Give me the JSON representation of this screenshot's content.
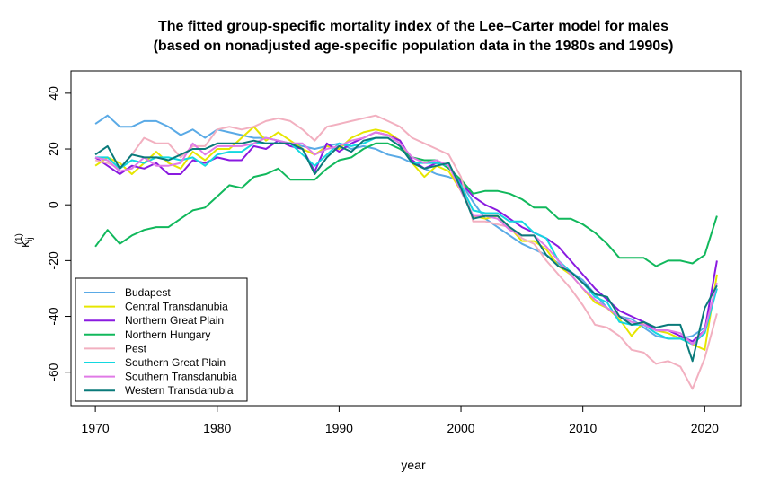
{
  "chart_data": {
    "type": "line",
    "title": "The fitted group-specific mortality index of the Lee–Carter model for males",
    "subtitle": "(based on nonadjusted age-specific population data in the 1980s and 1990s)",
    "xlabel": "year",
    "ylabel": "κij(1)",
    "ylabel_main": "κ",
    "ylabel_sup": "(1)",
    "ylabel_sub": "ij",
    "xlim": [
      1968,
      2023
    ],
    "ylim": [
      -72,
      48
    ],
    "xticks": [
      1970,
      1980,
      1990,
      2000,
      2010,
      2020
    ],
    "yticks": [
      -60,
      -40,
      -20,
      0,
      20,
      40
    ],
    "legend_position": "bottom-left",
    "x": [
      1970,
      1971,
      1972,
      1973,
      1974,
      1975,
      1976,
      1977,
      1978,
      1979,
      1980,
      1981,
      1982,
      1983,
      1984,
      1985,
      1986,
      1987,
      1988,
      1989,
      1990,
      1991,
      1992,
      1993,
      1994,
      1995,
      1996,
      1997,
      1998,
      1999,
      2000,
      2001,
      2002,
      2003,
      2004,
      2005,
      2006,
      2007,
      2008,
      2009,
      2010,
      2011,
      2012,
      2013,
      2014,
      2015,
      2016,
      2017,
      2018,
      2019,
      2020,
      2021
    ],
    "series": [
      {
        "name": "Budapest",
        "color": "#5aaae6",
        "values": [
          29,
          32,
          28,
          28,
          30,
          30,
          28,
          25,
          27,
          24,
          27,
          26,
          25,
          24,
          24,
          23,
          22,
          21,
          20,
          21,
          22,
          20,
          21,
          20,
          18,
          17,
          15,
          13,
          11,
          10,
          8,
          1,
          -5,
          -8,
          -11,
          -14,
          -16,
          -18,
          -21,
          -24,
          -27,
          -32,
          -37,
          -40,
          -41,
          -44,
          -47,
          -48,
          -48,
          -47,
          -44,
          -30
        ]
      },
      {
        "name": "Central Transdanubia",
        "color": "#e6e600",
        "values": [
          14,
          17,
          15,
          11,
          15,
          19,
          15,
          13,
          19,
          16,
          20,
          20,
          24,
          28,
          23,
          26,
          23,
          20,
          18,
          21,
          20,
          24,
          26,
          27,
          26,
          23,
          15,
          10,
          14,
          12,
          5,
          -4,
          -5,
          -4,
          -8,
          -13,
          -13,
          -16,
          -22,
          -25,
          -30,
          -35,
          -37,
          -41,
          -47,
          -42,
          -45,
          -46,
          -48,
          -50,
          -52,
          -25
        ]
      },
      {
        "name": "Northern Great Plain",
        "color": "#8a1ae0",
        "values": [
          17,
          14,
          11,
          14,
          13,
          15,
          11,
          11,
          16,
          15,
          17,
          16,
          16,
          21,
          20,
          23,
          21,
          20,
          12,
          22,
          19,
          22,
          24,
          26,
          25,
          23,
          16,
          13,
          15,
          14,
          8,
          3,
          0,
          -2,
          -5,
          -8,
          -10,
          -12,
          -15,
          -20,
          -25,
          -30,
          -34,
          -38,
          -40,
          -42,
          -45,
          -45,
          -47,
          -49,
          -45,
          -20
        ]
      },
      {
        "name": "Northern Hungary",
        "color": "#11b85c",
        "values": [
          -15,
          -9,
          -14,
          -11,
          -9,
          -8,
          -8,
          -5,
          -2,
          -1,
          3,
          7,
          6,
          10,
          11,
          13,
          9,
          9,
          9,
          13,
          16,
          17,
          20,
          22,
          22,
          20,
          17,
          16,
          16,
          13,
          9,
          4,
          5,
          5,
          4,
          2,
          -1,
          -1,
          -5,
          -5,
          -7,
          -10,
          -14,
          -19,
          -19,
          -19,
          -22,
          -20,
          -20,
          -21,
          -18,
          -4
        ]
      },
      {
        "name": "Pest",
        "color": "#f2b0c0",
        "values": [
          16,
          15,
          13,
          18,
          24,
          22,
          22,
          17,
          21,
          21,
          27,
          28,
          27,
          28,
          30,
          31,
          30,
          27,
          23,
          28,
          29,
          30,
          31,
          32,
          30,
          28,
          24,
          22,
          20,
          18,
          10,
          -6,
          -6,
          -7,
          -8,
          -12,
          -14,
          -20,
          -25,
          -30,
          -36,
          -43,
          -44,
          -47,
          -52,
          -53,
          -57,
          -56,
          -58,
          -66,
          -55,
          -39
        ]
      },
      {
        "name": "Southern Great Plain",
        "color": "#13d8e0",
        "values": [
          17,
          17,
          13,
          16,
          15,
          17,
          17,
          16,
          17,
          14,
          18,
          19,
          19,
          22,
          22,
          22,
          22,
          18,
          14,
          18,
          22,
          21,
          22,
          24,
          24,
          21,
          15,
          15,
          15,
          14,
          7,
          -2,
          -3,
          -3,
          -6,
          -6,
          -10,
          -12,
          -20,
          -24,
          -28,
          -33,
          -35,
          -42,
          -43,
          -43,
          -46,
          -48,
          -48,
          -50,
          -46,
          -30
        ]
      },
      {
        "name": "Southern Transdanubia",
        "color": "#e07ae6",
        "values": [
          17,
          16,
          12,
          13,
          17,
          14,
          14,
          15,
          22,
          18,
          21,
          21,
          21,
          22,
          24,
          23,
          22,
          22,
          18,
          20,
          21,
          23,
          24,
          26,
          25,
          22,
          17,
          15,
          16,
          14,
          5,
          -4,
          -4,
          -5,
          -9,
          -11,
          -11,
          -15,
          -20,
          -25,
          -30,
          -34,
          -37,
          -40,
          -42,
          -43,
          -45,
          -45,
          -46,
          -50,
          -45,
          -28
        ]
      },
      {
        "name": "Western Transdanubia",
        "color": "#0a7a7a",
        "values": [
          18,
          21,
          13,
          18,
          17,
          17,
          16,
          18,
          20,
          20,
          22,
          22,
          22,
          23,
          22,
          22,
          22,
          20,
          11,
          17,
          21,
          19,
          23,
          24,
          24,
          21,
          15,
          13,
          14,
          15,
          6,
          -5,
          -4,
          -4,
          -8,
          -11,
          -11,
          -18,
          -22,
          -24,
          -28,
          -32,
          -33,
          -40,
          -43,
          -42,
          -44,
          -43,
          -43,
          -56,
          -37,
          -29
        ]
      }
    ]
  }
}
